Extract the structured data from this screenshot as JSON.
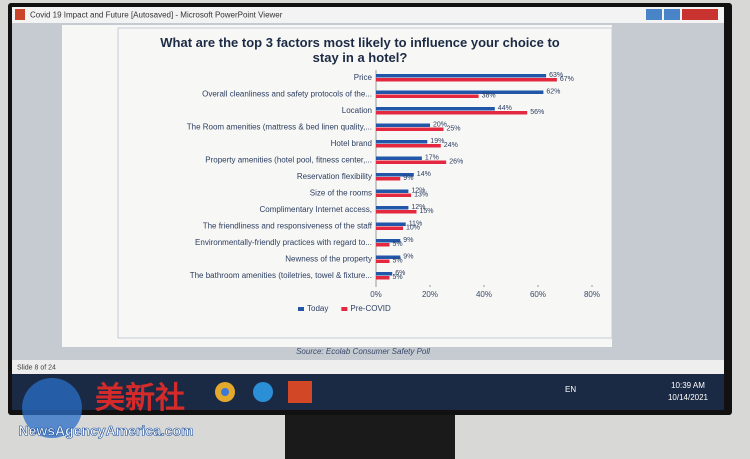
{
  "window": {
    "title": "Covid 19 Impact and Future [Autosaved] - Microsoft PowerPoint Viewer"
  },
  "status": {
    "slide": "Slide 8 of 24"
  },
  "chart_data": {
    "type": "bar",
    "orientation": "horizontal",
    "title": "What are the top 3 factors most likely to influence your choice to stay in a hotel?",
    "categories": [
      "Price",
      "Overall cleanliness and safety protocols of the...",
      "Location",
      "The Room amenities (mattress & bed linen quality,...",
      "Hotel brand",
      "Property amenities (hotel pool, fitness center,...",
      "Reservation flexibility",
      "Size of the rooms",
      "Complimentary Internet access,",
      "The friendliness and responsiveness of the staff",
      "Environmentally-friendly practices with regard to...",
      "Newness of the property",
      "The bathroom amenities (toiletries, towel & fixture..."
    ],
    "series": [
      {
        "name": "Today",
        "color": "#2156a8",
        "values": [
          63,
          62,
          44,
          20,
          19,
          17,
          14,
          12,
          12,
          11,
          9,
          9,
          6
        ],
        "value_labels": [
          "63%",
          "62%",
          "44%",
          "20%",
          "19%",
          "17%",
          "14%",
          "12%",
          "12%",
          "11%",
          "9%",
          "9%",
          "6%"
        ]
      },
      {
        "name": "Pre-COVID",
        "color": "#e3283f",
        "values": [
          67,
          38,
          56,
          25,
          24,
          26,
          9,
          13,
          15,
          10,
          5,
          5,
          5
        ],
        "value_labels": [
          "67%",
          "38%",
          "56%",
          "25%",
          "24%",
          "26%",
          "9%",
          "13%",
          "15%",
          "10%",
          "5%",
          "5%",
          "5%"
        ]
      }
    ],
    "xlim": [
      0,
      80
    ],
    "xticks": [
      {
        "value": 0,
        "label": "0%"
      },
      {
        "value": 20,
        "label": "20%"
      },
      {
        "value": 40,
        "label": "40%"
      },
      {
        "value": 60,
        "label": "60%"
      },
      {
        "value": 80,
        "label": "80%"
      }
    ],
    "legend": "bottom",
    "source": "Source: Ecolab Consumer Safety Poll"
  },
  "taskbar": {
    "language": "EN",
    "time": "10:39 AM",
    "date": "10/14/2021"
  },
  "watermark": {
    "brand": "美新社",
    "site": "NewsAgencyAmerica.com"
  }
}
